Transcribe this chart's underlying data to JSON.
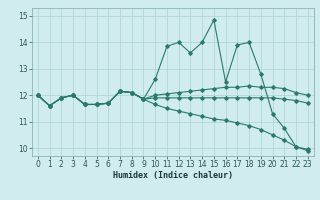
{
  "xlabel": "Humidex (Indice chaleur)",
  "xlim": [
    -0.5,
    23.5
  ],
  "ylim": [
    9.7,
    15.3
  ],
  "yticks": [
    10,
    11,
    12,
    13,
    14,
    15
  ],
  "xticks": [
    0,
    1,
    2,
    3,
    4,
    5,
    6,
    7,
    8,
    9,
    10,
    11,
    12,
    13,
    14,
    15,
    16,
    17,
    18,
    19,
    20,
    21,
    22,
    23
  ],
  "bg_color": "#d0ecec",
  "grid_color": "#b0d8d0",
  "line_color": "#2a7a6a",
  "series": [
    [
      12.0,
      11.6,
      11.9,
      12.0,
      11.65,
      11.65,
      11.7,
      12.15,
      12.1,
      11.85,
      12.0,
      12.05,
      12.1,
      12.15,
      12.2,
      12.25,
      12.3,
      12.3,
      12.35,
      12.3,
      12.3,
      12.25,
      12.1,
      12.0
    ],
    [
      12.0,
      11.6,
      11.9,
      12.0,
      11.65,
      11.65,
      11.7,
      12.15,
      12.1,
      11.85,
      12.6,
      13.85,
      14.0,
      13.6,
      14.0,
      14.85,
      12.5,
      13.9,
      14.0,
      12.8,
      11.3,
      10.75,
      10.05,
      9.9
    ],
    [
      12.0,
      11.6,
      11.9,
      12.0,
      11.65,
      11.65,
      11.7,
      12.15,
      12.1,
      11.85,
      11.9,
      11.9,
      11.9,
      11.9,
      11.9,
      11.9,
      11.9,
      11.9,
      11.9,
      11.9,
      11.9,
      11.85,
      11.8,
      11.7
    ],
    [
      12.0,
      11.6,
      11.9,
      12.0,
      11.65,
      11.65,
      11.7,
      12.15,
      12.1,
      11.85,
      11.65,
      11.5,
      11.4,
      11.3,
      11.2,
      11.1,
      11.05,
      10.95,
      10.85,
      10.7,
      10.5,
      10.3,
      10.05,
      9.95
    ]
  ]
}
